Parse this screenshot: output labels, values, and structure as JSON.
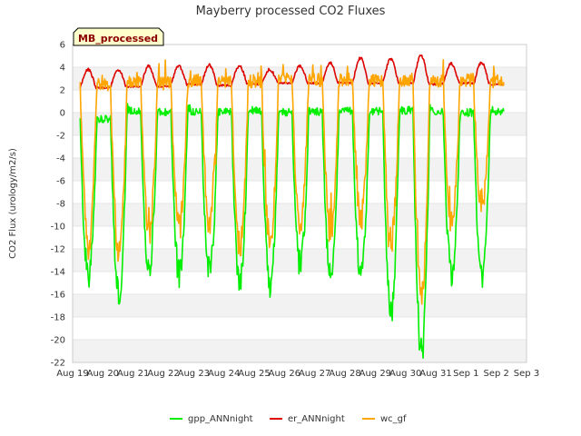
{
  "chart_data": {
    "type": "line",
    "title": "Mayberry processed CO2 Fluxes",
    "badge": "MB_processed",
    "xlabel": "",
    "ylabel": "CO2 Flux (urology/m2/s)",
    "ylim": [
      -22,
      6
    ],
    "yticks": [
      6,
      4,
      2,
      0,
      -2,
      -4,
      -6,
      -8,
      -10,
      -12,
      -14,
      -16,
      -18,
      -20,
      -22
    ],
    "xlim": [
      0,
      15
    ],
    "xticks": [
      "Aug 19",
      "Aug 20",
      "Aug 21",
      "Aug 22",
      "Aug 23",
      "Aug 24",
      "Aug 25",
      "Aug 26",
      "Aug 27",
      "Aug 28",
      "Aug 29",
      "Aug 30",
      "Aug 31",
      "Sep 1",
      "Sep 2",
      "Sep 3"
    ],
    "data_start_day": 0.25,
    "data_end_day": 14.25,
    "daily": {
      "gpp_night": [
        -0.6,
        0.2,
        0.0,
        0.1,
        0.1,
        0.2,
        0.0,
        0.1,
        0.2,
        0.1,
        0.2,
        0.1,
        0.0,
        0.1
      ],
      "gpp_day_max": [
        0.9,
        0.8,
        0.3,
        0.4,
        0.6,
        0.8,
        0.5,
        0.8,
        0.8,
        1.0,
        0.8,
        0.6,
        0.4,
        0.2
      ],
      "gpp_min": [
        -14.5,
        -15.8,
        -13.5,
        -14.2,
        -13.8,
        -15.0,
        -15.3,
        -13.2,
        -14.5,
        -14.2,
        -17.2,
        -20.7,
        -14.2,
        -14.5
      ],
      "er_night": [
        2.2,
        2.3,
        2.3,
        2.5,
        2.4,
        2.5,
        2.6,
        2.6,
        2.6,
        2.6,
        2.6,
        2.5,
        2.6,
        2.5
      ],
      "er_peak": [
        3.8,
        3.7,
        4.1,
        4.1,
        4.2,
        4.1,
        3.8,
        4.1,
        4.4,
        4.8,
        4.7,
        5.0,
        4.3,
        4.4
      ],
      "wc_min": [
        -11.5,
        -12.5,
        -10.5,
        -9.8,
        -9.5,
        -11.8,
        -11.5,
        -9.5,
        -10.5,
        -9.2,
        -11.5,
        -16.2,
        -10.0,
        -8.5
      ]
    },
    "series": [
      {
        "name": "gpp_ANNnight",
        "color": "#00ee00"
      },
      {
        "name": "er_ANNnight",
        "color": "#dd0000"
      },
      {
        "name": "wc_gf",
        "color": "#ffa500"
      }
    ],
    "grid": true,
    "legend": "bottom"
  }
}
